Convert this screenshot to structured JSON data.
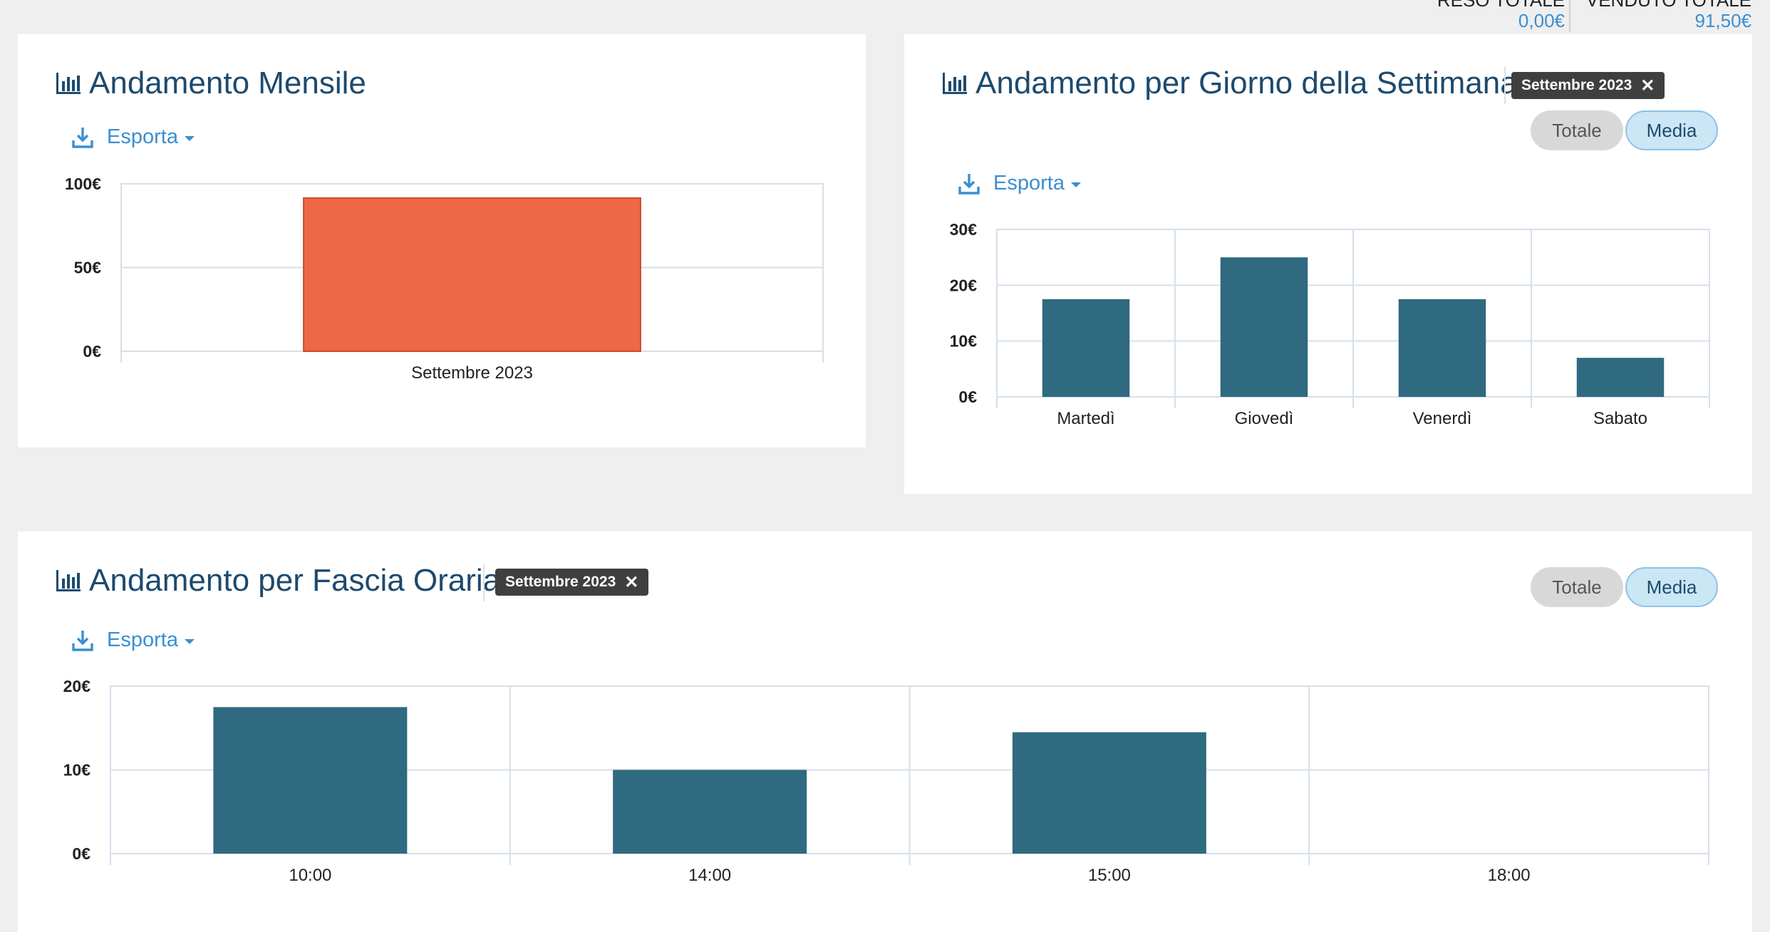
{
  "summary": {
    "reso_label": "RESO TOTALE",
    "reso_value": "0,00€",
    "venduto_label": "VENDUTO TOTALE",
    "venduto_value": "91,50€"
  },
  "monthly": {
    "title": "Andamento Mensile",
    "export_label": "Esporta",
    "chart_data": {
      "type": "bar",
      "categories": [
        "Settembre 2023"
      ],
      "values": [
        91.5
      ],
      "ylim": [
        0,
        100
      ],
      "yticks": [
        0,
        50,
        100
      ],
      "ytick_labels": [
        "0€",
        "50€",
        "100€"
      ],
      "grid": true,
      "bar_color": "#ee6845"
    }
  },
  "weekday": {
    "title": "Andamento per Giorno della Settimana",
    "filter_tag": "Settembre 2023",
    "toggle_totale": "Totale",
    "toggle_media": "Media",
    "active_toggle": "Media",
    "export_label": "Esporta",
    "chart_data": {
      "type": "bar",
      "categories": [
        "Martedì",
        "Giovedì",
        "Venerdì",
        "Sabato"
      ],
      "values": [
        17.5,
        25,
        17.5,
        7
      ],
      "ylim": [
        0,
        30
      ],
      "yticks": [
        0,
        10,
        20,
        30
      ],
      "ytick_labels": [
        "0€",
        "10€",
        "20€",
        "30€"
      ],
      "grid": true,
      "bar_color": "#2f6a80"
    }
  },
  "hourly": {
    "title": "Andamento per Fascia Oraria",
    "filter_tag": "Settembre 2023",
    "toggle_totale": "Totale",
    "toggle_media": "Media",
    "active_toggle": "Media",
    "export_label": "Esporta",
    "chart_data": {
      "type": "bar",
      "categories": [
        "10:00",
        "14:00",
        "15:00",
        "18:00"
      ],
      "values": [
        17.5,
        10,
        14.5,
        0
      ],
      "ylim": [
        0,
        20
      ],
      "yticks": [
        0,
        10,
        20
      ],
      "ytick_labels": [
        "0€",
        "10€",
        "20€"
      ],
      "grid": true,
      "bar_color": "#2f6a80"
    }
  }
}
